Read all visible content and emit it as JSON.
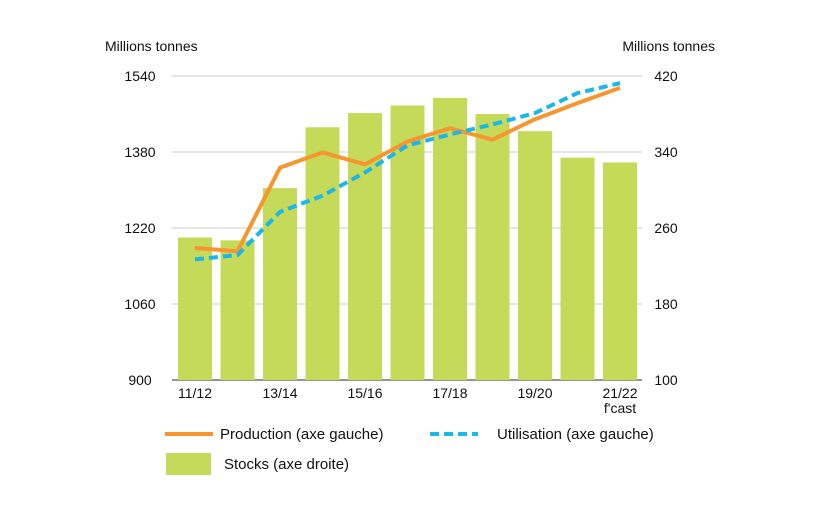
{
  "chart_data": {
    "type": "bar+line",
    "left_axis_label": "Millions tonnes",
    "right_axis_label": "Millions tonnes",
    "left_ylim": [
      900,
      1540
    ],
    "left_ticks": [
      900,
      1060,
      1220,
      1380,
      1540
    ],
    "right_ylim": [
      100,
      420
    ],
    "right_ticks": [
      100,
      180,
      260,
      340,
      420
    ],
    "grid": true,
    "categories": [
      "11/12",
      "12/13",
      "13/14",
      "14/15",
      "15/16",
      "16/17",
      "17/18",
      "18/19",
      "19/20",
      "20/21",
      "21/22"
    ],
    "x_tick_labels": [
      "11/12",
      "",
      "13/14",
      "",
      "15/16",
      "",
      "17/18",
      "",
      "19/20",
      "",
      "21/22"
    ],
    "x_tick_sublabel": "f'cast",
    "series": [
      {
        "name": "Stocks (axe droite)",
        "type": "bar",
        "axis": "right",
        "color": "#c5da58",
        "values": [
          250,
          247,
          302,
          366,
          381,
          389,
          397,
          380,
          362,
          334,
          329
        ]
      },
      {
        "name": "Production (axe gauche)",
        "type": "line",
        "axis": "left",
        "color": "#f7962f",
        "values": [
          1178,
          1171,
          1347,
          1379,
          1354,
          1402,
          1430,
          1406,
          1449,
          1483,
          1515
        ]
      },
      {
        "name": "Utilisation (axe gauche)",
        "type": "line-dashed",
        "axis": "left",
        "color": "#1ab7ea",
        "values": [
          1154,
          1163,
          1254,
          1288,
          1337,
          1394,
          1417,
          1438,
          1462,
          1504,
          1525
        ]
      }
    ],
    "legend_placement": "bottom"
  }
}
